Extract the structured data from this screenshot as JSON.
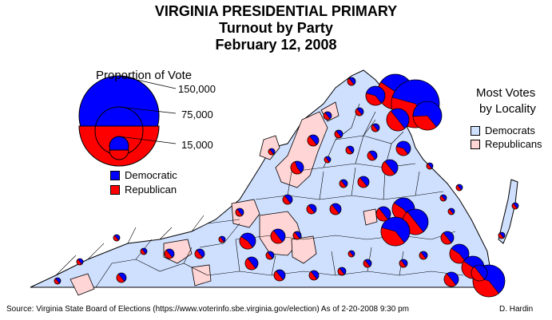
{
  "title": {
    "line1": "VIRGINIA PRESIDENTIAL PRIMARY",
    "line2": "Turnout by Party",
    "line3": "February 12, 2008"
  },
  "size_legend": {
    "title": "Proportion of Vote",
    "labels": [
      "150,000",
      "75,000",
      "15,000"
    ]
  },
  "party_legend": {
    "democratic": "Democratic",
    "republican": "Republican"
  },
  "locality_legend": {
    "title_line1": "Most Votes",
    "title_line2": "by Locality",
    "democrats": "Democrats",
    "republicans": "Republicans"
  },
  "footer": {
    "source": "Source: Virginia State Board of Elections (https://www.voterinfo.sbe.virginia.gov/election)  As of 2-20-2008 9:30 pm",
    "author": "D. Hardin"
  },
  "colors": {
    "democratic": "#0000ff",
    "republican": "#ff0000",
    "dem_locality_fill": "#cfe0ff",
    "rep_locality_fill": "#ffd5d5",
    "border": "#000000"
  }
}
